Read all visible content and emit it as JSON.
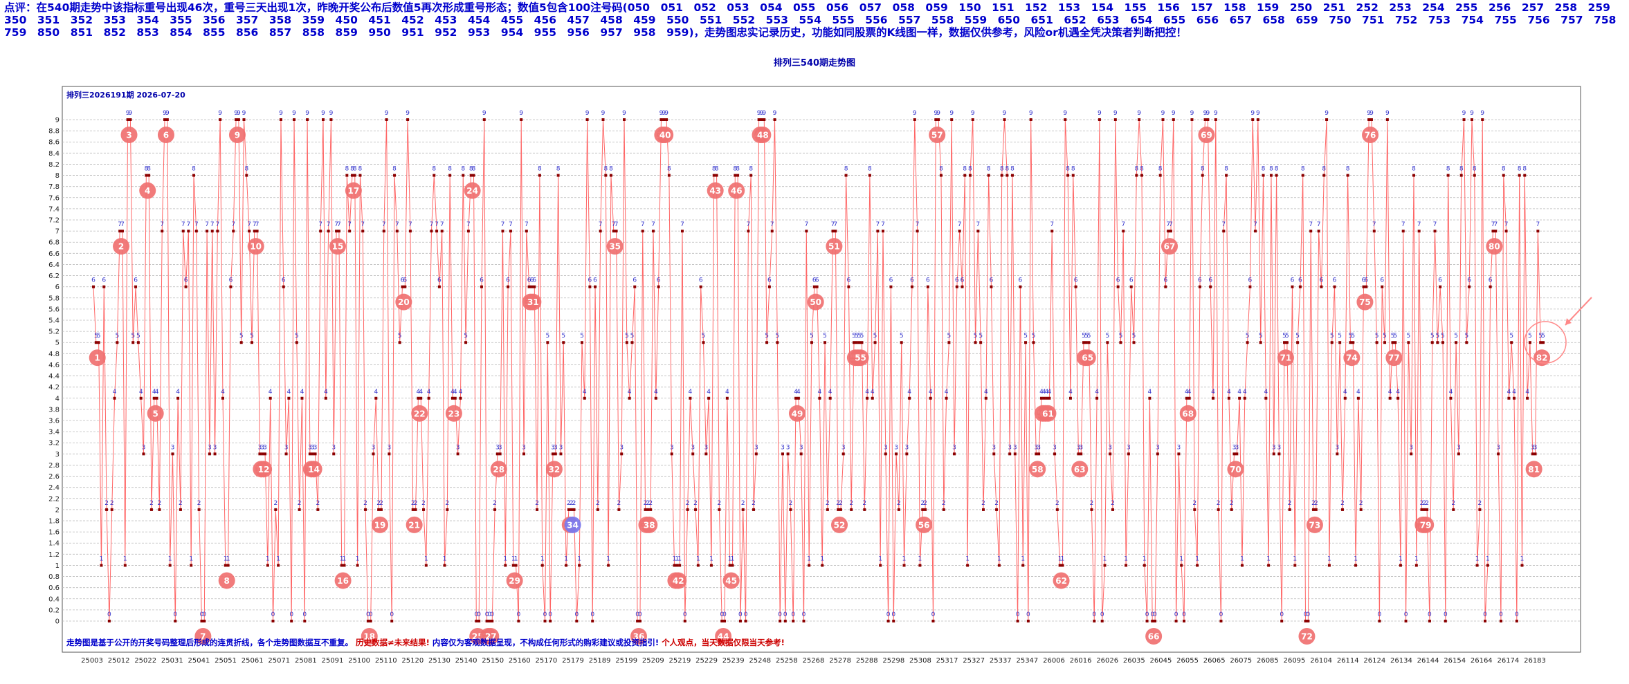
{
  "header": {
    "prefix": "点评：",
    "text": "在540期走势中该指标重号出现46次，重号三天出现1次，昨晚开奖公布后数值5再次形成重号形态；数值5包含100注号码(050　051　052　053　054　055　056　057　058　059　150　151　152　153　154　155　156　157　158　159　250　251　252　253　254　255　256　257　258　259　350　351　352　353　354　355　356　357　358　359　450　451　452　453　454　455　456　457　458　459　550　551　552　553　554　555　556　557　558　559　650　651　652　653　654　655　656　657　658　659　750　751　752　753　754　755　756　757　758　759　850　851　852　853　854　855　856　857　858　859　950　951　952　953　954　955　956　957　958　959)，走势图忠实记录历史，功能如同股票的K线图一样，数据仅供参考，风险or机遇全凭决策者判断把控！"
  },
  "page_title": "排列三540期走势图",
  "chart_data": {
    "type": "line",
    "subtitle": "排列三2026191期 2026-07-20",
    "ylim": [
      0,
      9
    ],
    "y_ticks": [
      "0",
      "0.2",
      "0.4",
      "0.6",
      "0.8",
      "1",
      "1.2",
      "1.4",
      "1.6",
      "1.8",
      "2",
      "2.2",
      "2.4",
      "2.6",
      "2.8",
      "3",
      "3.2",
      "3.4",
      "3.6",
      "3.8",
      "4",
      "4.2",
      "4.4",
      "4.6",
      "4.8",
      "5",
      "5.2",
      "5.4",
      "5.6",
      "5.8",
      "6",
      "6.2",
      "6.4",
      "6.6",
      "6.8",
      "7",
      "7.2",
      "7.4",
      "7.6",
      "7.8",
      "8",
      "8.2",
      "8.4",
      "8.6",
      "8.8",
      "9"
    ],
    "x_tick_labels": [
      "25003",
      "25012",
      "25022",
      "25031",
      "25041",
      "25051",
      "25061",
      "25071",
      "25081",
      "25091",
      "25100",
      "25110",
      "25120",
      "25130",
      "25140",
      "25150",
      "25160",
      "25170",
      "25179",
      "25189",
      "25199",
      "25209",
      "25219",
      "25229",
      "25239",
      "25248",
      "25258",
      "25268",
      "25278",
      "25288",
      "25298",
      "25308",
      "25317",
      "25327",
      "25337",
      "25347",
      "26006",
      "26016",
      "26026",
      "26035",
      "26045",
      "26055",
      "26065",
      "26075",
      "26085",
      "26095",
      "26104",
      "26114",
      "26124",
      "26134",
      "26144",
      "26154",
      "26164",
      "26174",
      "26183"
    ],
    "grid": true,
    "line_color": "#ff6666",
    "point_color": "#8b0000",
    "label_color": "#3333cc",
    "marker_color": "#f07070",
    "highlight_marker_color": "#7777ee",
    "footer_note_1": "走势图是基于公开的开奖号码整理后形成的连贯折线，各个走势图数据互不重复。",
    "footer_note_2": "历史数据≠未来结果!",
    "footer_note_3": "内容仅为客观数据呈现，不构成任何形式的购彩建议或投资指引!",
    "footer_note_4": "个人观点，当天数据仅限当天参考!",
    "series_values": [
      6,
      5,
      5,
      1,
      6,
      2,
      0,
      2,
      4,
      5,
      7,
      7,
      1,
      9,
      9,
      5,
      6,
      5,
      4,
      3,
      8,
      8,
      2,
      4,
      4,
      2,
      7,
      9,
      9,
      1,
      3,
      0,
      4,
      2,
      7,
      6,
      7,
      1,
      8,
      7,
      2,
      0,
      0,
      7,
      3,
      7,
      3,
      7,
      9,
      4,
      1,
      1,
      6,
      7,
      9,
      9,
      5,
      9,
      8,
      7,
      5,
      7,
      7,
      3,
      3,
      3,
      1,
      4,
      0,
      2,
      1,
      9,
      6,
      3,
      4,
      0,
      9,
      5,
      2,
      4,
      0,
      9,
      3,
      3,
      3,
      2,
      7,
      9,
      4,
      7,
      9,
      3,
      7,
      7,
      1,
      1,
      8,
      7,
      8,
      8,
      1,
      8,
      7,
      2,
      0,
      0,
      3,
      4,
      2,
      2,
      7,
      9,
      3,
      0,
      8,
      7,
      5,
      6,
      6,
      9,
      7,
      2,
      2,
      4,
      4,
      2,
      1,
      4,
      7,
      8,
      7,
      6,
      7,
      1,
      2,
      8,
      4,
      4,
      3,
      4,
      8,
      5,
      7,
      8,
      8,
      0,
      0,
      6,
      9,
      0,
      0,
      0,
      2,
      3,
      3,
      7,
      1,
      6,
      7,
      1,
      1,
      0,
      9,
      3,
      7,
      6,
      6,
      6,
      2,
      8,
      1,
      0,
      5,
      0,
      3,
      3,
      8,
      3,
      5,
      1,
      2,
      2,
      2,
      0,
      1,
      5,
      4,
      9,
      6,
      0,
      6,
      2,
      7,
      9,
      8,
      1,
      8,
      7,
      7,
      2,
      3,
      9,
      5,
      4,
      5,
      6,
      0,
      0,
      7,
      2,
      2,
      2,
      7,
      4,
      6,
      9,
      9,
      9,
      8,
      3,
      1,
      1,
      1,
      7,
      0,
      2,
      4,
      3,
      2,
      1,
      6,
      5,
      3,
      4,
      1,
      8,
      8,
      2,
      0,
      0,
      4,
      1,
      1,
      8,
      8,
      0,
      2,
      0,
      7,
      8,
      2,
      3,
      9,
      9,
      9,
      5,
      6,
      7,
      9,
      5,
      0,
      3,
      0,
      3,
      2,
      0,
      4,
      4,
      3,
      0,
      7,
      1,
      5,
      6,
      6,
      4,
      1,
      5,
      2,
      4,
      7,
      7,
      2,
      2,
      3,
      8,
      6,
      2,
      5,
      5,
      5,
      5,
      2,
      4,
      8,
      4,
      5,
      7,
      1,
      7,
      3,
      0,
      6,
      0,
      3,
      2,
      5,
      1,
      3,
      4,
      6,
      9,
      7,
      1,
      2,
      2,
      6,
      4,
      0,
      9,
      9,
      8,
      2,
      4,
      5,
      9,
      3,
      6,
      7,
      6,
      8,
      1,
      8,
      9,
      5,
      7,
      5,
      2,
      4,
      8,
      6,
      3,
      2,
      1,
      8,
      9,
      8,
      3,
      8,
      3,
      0,
      6,
      1,
      5,
      0,
      9,
      5,
      3,
      3,
      4,
      4,
      4,
      4,
      7,
      3,
      2,
      1,
      1,
      9,
      8,
      4,
      8,
      6,
      3,
      3,
      5,
      5,
      5,
      2,
      0,
      4,
      9,
      0,
      1,
      5,
      3,
      2,
      9,
      6,
      5,
      7,
      1,
      3,
      6,
      5,
      8,
      9,
      8,
      1,
      0,
      4,
      0,
      0,
      3,
      8,
      9,
      6,
      7,
      7,
      9,
      0,
      3,
      1,
      0,
      4,
      4,
      9,
      2,
      1,
      6,
      8,
      9,
      9,
      6,
      4,
      9,
      2,
      0,
      7,
      8,
      4,
      2,
      3,
      3,
      4,
      1,
      4,
      5,
      6,
      9,
      7,
      9,
      5,
      8,
      4,
      1,
      8,
      3,
      8,
      3,
      0,
      5,
      5,
      2,
      6,
      1,
      5,
      6,
      8,
      0,
      0,
      7,
      2,
      2,
      7,
      6,
      8,
      9,
      1,
      5,
      6,
      3,
      5,
      2,
      4,
      8,
      5,
      5,
      1,
      4,
      2,
      6,
      6,
      9,
      9,
      7,
      5,
      0,
      6,
      5,
      9,
      4,
      5,
      5,
      4,
      1,
      7,
      0,
      5,
      3,
      8,
      1,
      7,
      2,
      2,
      2,
      0,
      5,
      7,
      5,
      6,
      5,
      0,
      8,
      4,
      2,
      5,
      3,
      8,
      9,
      5,
      6,
      9,
      8,
      1,
      2,
      9,
      0,
      1,
      6,
      7,
      7,
      3,
      0,
      8,
      7,
      4,
      5,
      4,
      0,
      8,
      1,
      8,
      4,
      5,
      3,
      3,
      7,
      5,
      5
    ]
  }
}
